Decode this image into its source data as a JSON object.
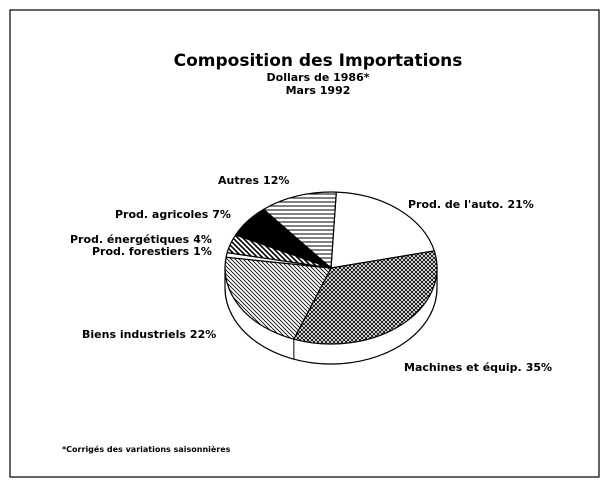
{
  "chart_data": {
    "type": "pie",
    "title": "Composition des Importations",
    "subtitle": "Dollars de 1986*",
    "date": "Mars 1992",
    "note": "*Corrigés des variations saisonnières",
    "categories": [
      "Prod. de l'auto.",
      "Machines et équip.",
      "Biens industriels",
      "Prod. forestiers",
      "Prod. énergétiques",
      "Prod. agricoles",
      "Autres"
    ],
    "values": [
      21,
      35,
      22,
      1,
      4,
      7,
      12
    ],
    "value_labels": [
      "21%",
      "35%",
      "22%",
      "1%",
      "4%",
      "7%",
      "12%"
    ]
  }
}
